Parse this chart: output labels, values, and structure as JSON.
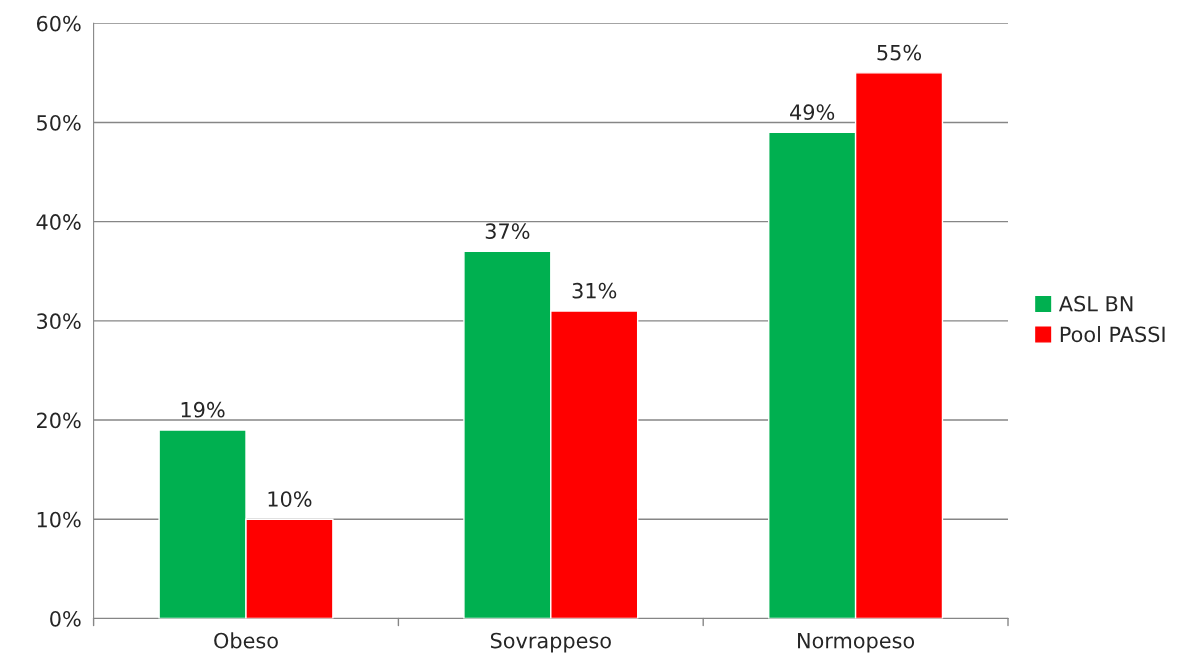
{
  "chart_data": {
    "type": "bar",
    "categories": [
      "Obeso",
      "Sovrappeso",
      "Normopeso"
    ],
    "series": [
      {
        "name": "ASL BN",
        "color": "#00b050",
        "values": [
          19,
          37,
          49
        ],
        "value_labels": [
          "19%",
          "37%",
          "49%"
        ]
      },
      {
        "name": "Pool PASSI",
        "color": "#ff0000",
        "values": [
          10,
          31,
          55
        ],
        "value_labels": [
          "10%",
          "31%",
          "55%"
        ]
      }
    ],
    "ylim": [
      0,
      60
    ],
    "yticks": [
      {
        "value": 0,
        "label": "0%"
      },
      {
        "value": 10,
        "label": "10%"
      },
      {
        "value": 20,
        "label": "20%"
      },
      {
        "value": 30,
        "label": "30%"
      },
      {
        "value": 40,
        "label": "40%"
      },
      {
        "value": 50,
        "label": "50%"
      },
      {
        "value": 60,
        "label": "60%"
      }
    ],
    "grid": "y",
    "legend": "right"
  }
}
